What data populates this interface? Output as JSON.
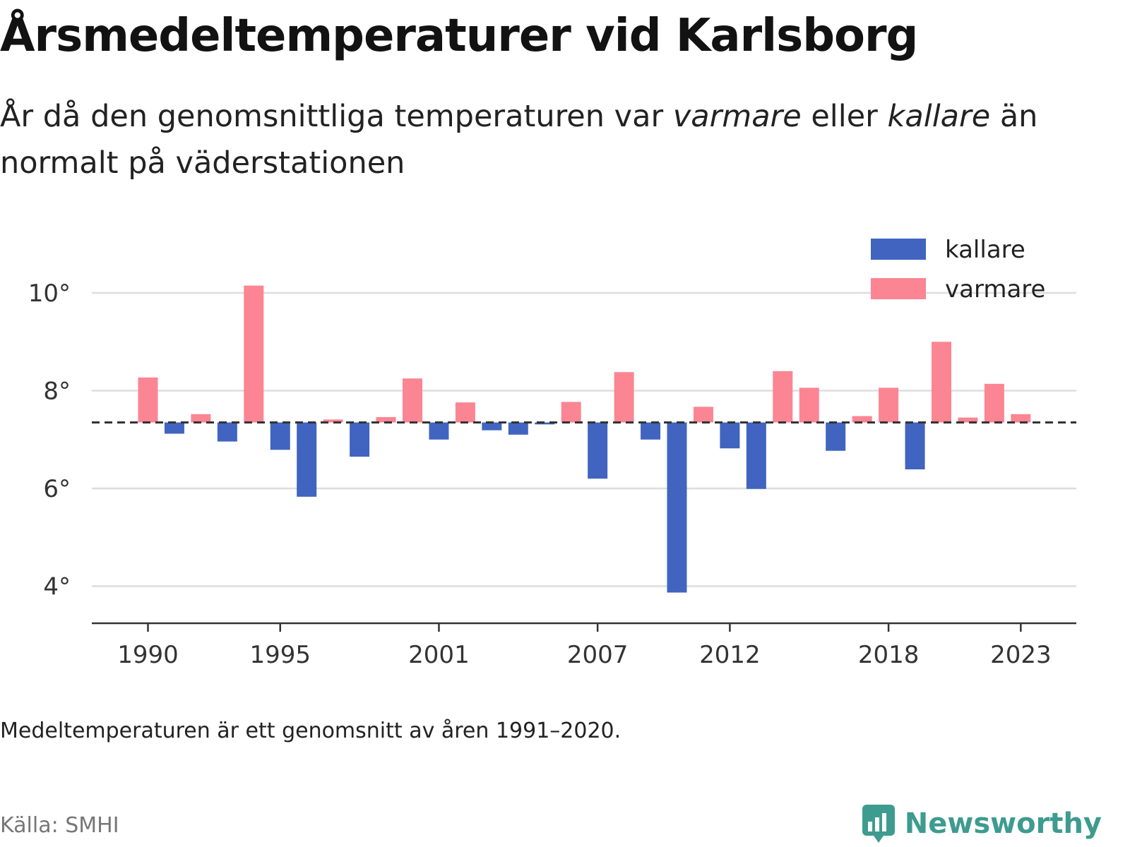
{
  "header": {
    "title": "Årsmedeltemperaturer vid Karlsborg",
    "subtitle_pre": "År då den genomsnittliga temperaturen var ",
    "subtitle_em1": "varmare",
    "subtitle_mid": " eller ",
    "subtitle_em2": "kallare",
    "subtitle_post": " än normalt på väderstationen"
  },
  "footer": {
    "note": "Medeltemperaturen är ett genomsnitt av åren 1991–2020.",
    "source": "Källa: SMHI",
    "brand": "Newsworthy"
  },
  "colors": {
    "warmer": "#fb8593",
    "colder": "#4064c0",
    "baseline": "#333333",
    "grid": "#dddddd",
    "brand": "#3e9b8f"
  },
  "icons": {
    "brand_logo": "chart-bubble-icon"
  },
  "chart_data": {
    "type": "bar",
    "title": "Årsmedeltemperaturer vid Karlsborg",
    "xlabel": "",
    "ylabel": "",
    "baseline": 7.35,
    "ylim": [
      3.3,
      10.8
    ],
    "yticks": [
      4,
      6,
      8,
      10
    ],
    "ytick_labels": [
      "4°",
      "6°",
      "8°",
      "10°"
    ],
    "xticks": [
      1990,
      1995,
      2001,
      2007,
      2012,
      2018,
      2023
    ],
    "xtick_labels": [
      "1990",
      "1995",
      "2001",
      "2007",
      "2012",
      "2018",
      "2023"
    ],
    "grid": true,
    "legend": {
      "placement": "top-right",
      "entries": [
        {
          "name": "kallare",
          "color": "#4064c0"
        },
        {
          "name": "varmare",
          "color": "#fb8593"
        }
      ]
    },
    "years": [
      1990,
      1991,
      1992,
      1993,
      1994,
      1995,
      1996,
      1997,
      1998,
      1999,
      2000,
      2001,
      2002,
      2003,
      2004,
      2005,
      2006,
      2007,
      2008,
      2009,
      2010,
      2011,
      2012,
      2013,
      2014,
      2015,
      2016,
      2017,
      2018,
      2019,
      2020,
      2021,
      2022,
      2023
    ],
    "values": [
      8.27,
      7.12,
      7.52,
      6.96,
      10.15,
      6.79,
      5.83,
      7.41,
      6.65,
      7.46,
      8.25,
      7.0,
      7.76,
      7.19,
      7.1,
      7.31,
      7.77,
      6.2,
      8.38,
      7.0,
      3.87,
      7.67,
      6.82,
      5.99,
      8.4,
      8.06,
      6.77,
      7.48,
      8.06,
      6.39,
      9.0,
      7.45,
      8.14,
      7.52
    ]
  }
}
